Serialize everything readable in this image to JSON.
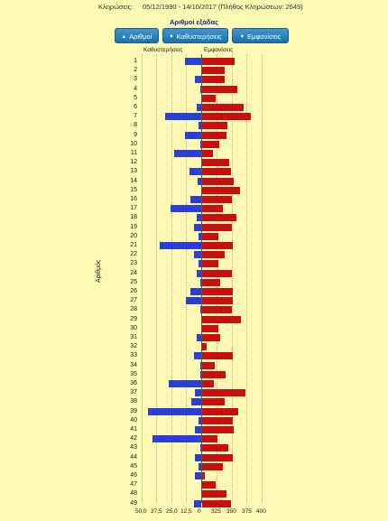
{
  "header": {
    "label": "Κληρώσεις:",
    "range": "05/12/1990 - 14/10/2017  (Πλήθος Κληρώσεων: 2649)"
  },
  "controls": {
    "title": "Αριθμοί εξάδας",
    "buttons": [
      {
        "label": "Αριθμοί",
        "icon": "triangle-up-icon"
      },
      {
        "label": "Καθυστερήσεις",
        "icon": "triangle-down-icon"
      },
      {
        "label": "Εμφανίσεις",
        "icon": "triangle-down-icon"
      }
    ]
  },
  "colors": {
    "delays": "#2a3fd8",
    "appearances": "#c80f0f",
    "background": "#fdf8b3"
  },
  "chart_data": {
    "type": "bar",
    "orientation": "horizontal-diverging",
    "ylabel": "Αριθμός",
    "left_header": "Καθυστερήσεις",
    "right_header": "Εμφανίσεις",
    "x_ticks": [
      "50,0",
      "37,5",
      "25,0",
      "12,5",
      "0",
      "325",
      "350",
      "375",
      "400"
    ],
    "categories": [
      "1",
      "2",
      "3",
      "4",
      "5",
      "6",
      "7",
      "8",
      "9",
      "10",
      "11",
      "12",
      "13",
      "14",
      "15",
      "16",
      "17",
      "18",
      "19",
      "20",
      "21",
      "22",
      "23",
      "24",
      "25",
      "26",
      "27",
      "28",
      "29",
      "30",
      "31",
      "32",
      "33",
      "34",
      "35",
      "36",
      "37",
      "38",
      "39",
      "40",
      "41",
      "42",
      "43",
      "44",
      "45",
      "46",
      "47",
      "48",
      "49"
    ],
    "series": [
      {
        "name": "Καθυστερήσεις",
        "values": [
          14,
          0,
          5,
          1,
          0,
          4,
          30,
          2,
          14,
          1,
          23,
          0,
          10,
          3,
          0,
          9,
          26,
          4,
          6,
          2,
          35,
          6,
          2,
          4,
          1,
          9,
          13,
          1,
          0,
          0,
          4,
          0,
          6,
          1,
          1,
          27,
          5,
          8,
          45,
          2,
          5,
          41,
          1,
          5,
          2,
          5,
          0,
          0,
          6
        ]
      },
      {
        "name": "Εμφανίσεις",
        "values": [
          353,
          337,
          337,
          358,
          322,
          368,
          381,
          342,
          341,
          329,
          318,
          345,
          348,
          352,
          362,
          349,
          334,
          356,
          349,
          327,
          350,
          338,
          327,
          349,
          330,
          350,
          350,
          349,
          364,
          327,
          330,
          308,
          351,
          321,
          339,
          320,
          372,
          338,
          359,
          351,
          352,
          326,
          343,
          350,
          335,
          304,
          322,
          340,
          348
        ]
      }
    ],
    "left_range": [
      0,
      50
    ],
    "right_range": [
      300,
      400
    ],
    "grid": true
  }
}
